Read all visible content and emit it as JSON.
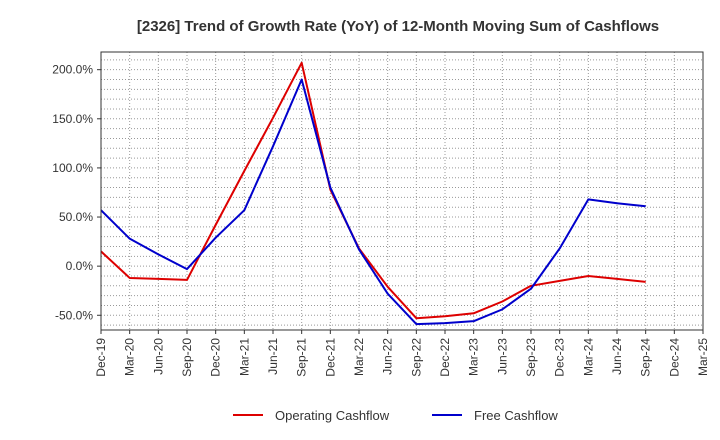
{
  "chart_data": {
    "type": "line",
    "title": "[2326]  Trend of Growth Rate (YoY) of 12-Month Moving Sum of Cashflows",
    "xlabel": "",
    "ylabel": "",
    "x": [
      "Dec-19",
      "Mar-20",
      "Jun-20",
      "Sep-20",
      "Dec-20",
      "Mar-21",
      "Jun-21",
      "Sep-21",
      "Dec-21",
      "Mar-22",
      "Jun-22",
      "Sep-22",
      "Dec-22",
      "Mar-23",
      "Jun-23",
      "Sep-23",
      "Dec-23",
      "Mar-24",
      "Jun-24",
      "Sep-24",
      "Dec-24",
      "Mar-25"
    ],
    "ylim": [
      -65,
      218
    ],
    "yticks": [
      200,
      150,
      100,
      50,
      0,
      -50
    ],
    "ytick_labels": [
      "200.0%",
      "150.0%",
      "100.0%",
      "50.0%",
      "0.0%",
      "-50.0%"
    ],
    "grid": true,
    "legend_position": "bottom",
    "series": [
      {
        "name": "Operating Cashflow",
        "color": "#dd0000",
        "values": [
          15,
          -12,
          -13,
          -14,
          42,
          97,
          151,
          207,
          78,
          18,
          -21,
          -53,
          -51,
          -48,
          -36,
          -20,
          -15,
          -10,
          -13,
          -16,
          null,
          null
        ]
      },
      {
        "name": "Free Cashflow",
        "color": "#0000cc",
        "values": [
          57,
          28,
          12,
          -3,
          29,
          57,
          122,
          190,
          80,
          17,
          -28,
          -59,
          -58,
          -56,
          -44,
          -23,
          18,
          68,
          64,
          61,
          null,
          null
        ]
      }
    ]
  }
}
